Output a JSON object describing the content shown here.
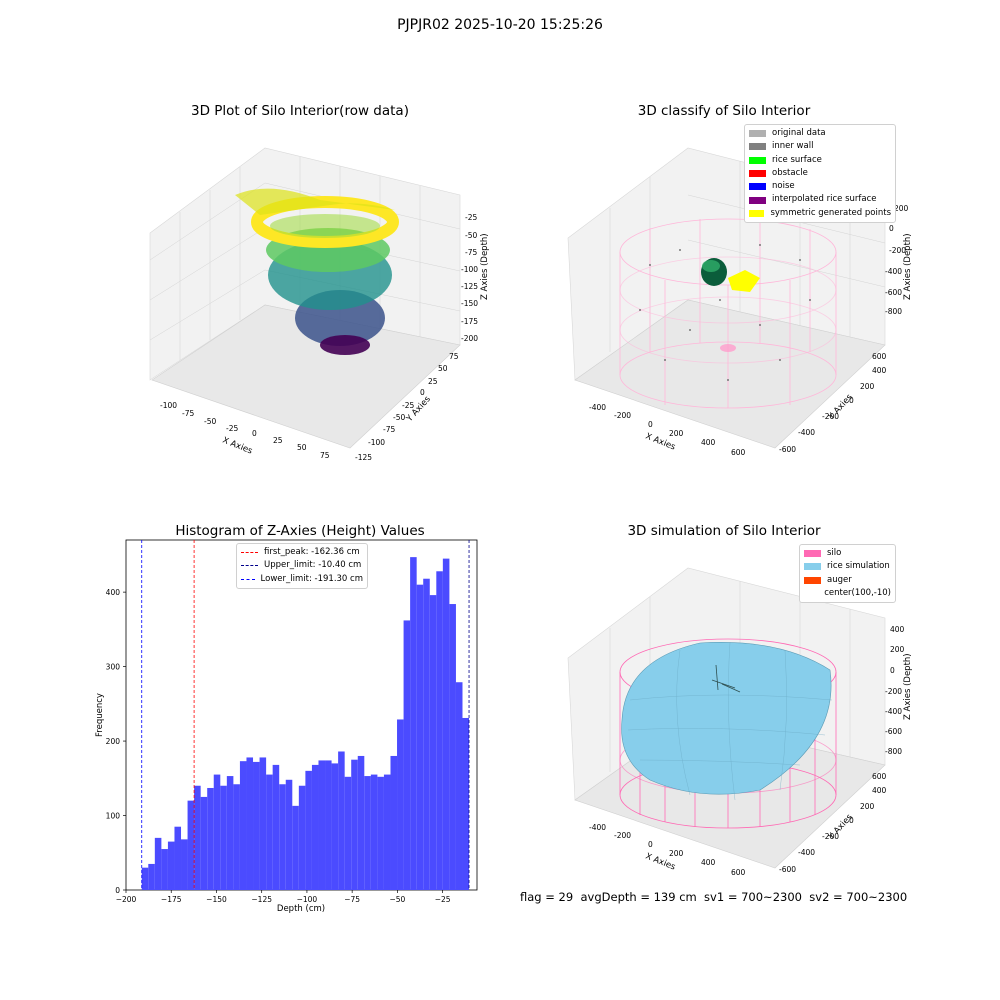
{
  "figure": {
    "suptitle": "PJPJR02 2025-10-20 15:25:26",
    "footer": "flag = 29  avgDepth = 139 cm  sv1 = 700~2300  sv2 = 700~2300"
  },
  "panels": {
    "raw": {
      "title": "3D Plot of Silo Interior(row data)",
      "xlabel": "X Axies",
      "ylabel": "Y Axies",
      "zlabel": "Z Axies (Depth)",
      "xticks": [
        "-100",
        "-75",
        "-50",
        "-25",
        "0",
        "25",
        "50",
        "75"
      ],
      "yticks": [
        "-125",
        "-100",
        "-75",
        "-50",
        "-25",
        "0",
        "25",
        "50",
        "75"
      ],
      "zticks": [
        "-25",
        "-50",
        "-75",
        "-100",
        "-125",
        "-150",
        "-175",
        "-200"
      ]
    },
    "classify": {
      "title": "3D classify of Silo Interior",
      "xlabel": "X Axies",
      "ylabel": "Y Axies",
      "zlabel": "Z Axies (Depth)",
      "xticks": [
        "-400",
        "-200",
        "0",
        "200",
        "400",
        "600"
      ],
      "yticks": [
        "-600",
        "-400",
        "-200",
        "0",
        "200",
        "400",
        "600"
      ],
      "zticks": [
        "200",
        "0",
        "-200",
        "-400",
        "-600",
        "-800"
      ],
      "legend": [
        {
          "label": "original data",
          "color": "#b0b0b0"
        },
        {
          "label": "inner wall",
          "color": "#808080"
        },
        {
          "label": "rice surface",
          "color": "#00ff00"
        },
        {
          "label": "obstacle",
          "color": "#ff0000"
        },
        {
          "label": "noise",
          "color": "#0000ff"
        },
        {
          "label": "interpolated rice surface",
          "color": "#800080"
        },
        {
          "label": "symmetric generated points",
          "color": "#ffff00"
        }
      ]
    },
    "simulation": {
      "title": "3D simulation of Silo Interior",
      "xlabel": "X Axies",
      "ylabel": "Y Axies",
      "zlabel": "Z Axies (Depth)",
      "xticks": [
        "-400",
        "-200",
        "0",
        "200",
        "400",
        "600"
      ],
      "yticks": [
        "-600",
        "-400",
        "-200",
        "0",
        "200",
        "400",
        "600"
      ],
      "zticks": [
        "400",
        "200",
        "0",
        "-200",
        "-400",
        "-600",
        "-800"
      ],
      "legend": [
        {
          "label": "silo",
          "color": "#ff69b4"
        },
        {
          "label": "rice simulation",
          "color": "#87ceeb"
        },
        {
          "label": "auger",
          "color": "#ff4500"
        },
        {
          "label": "center(100,-10)",
          "color": ""
        }
      ]
    }
  },
  "chart_data": [
    {
      "type": "bar",
      "title": "Histogram of Z-Axies (Height) Values",
      "xlabel": "Depth (cm)",
      "ylabel": "Frequency",
      "xlim": [
        -200,
        -6
      ],
      "ylim": [
        0,
        470
      ],
      "xticks": [
        -200,
        -175,
        -150,
        -125,
        -100,
        -75,
        -50,
        -25
      ],
      "yticks": [
        0,
        100,
        200,
        300,
        400
      ],
      "bar_color": "#4b4bff",
      "bins_start": -191.3,
      "bin_width": 3.618,
      "values": [
        30,
        35,
        70,
        55,
        65,
        85,
        68,
        120,
        140,
        125,
        137,
        155,
        140,
        153,
        142,
        173,
        178,
        172,
        178,
        155,
        168,
        142,
        148,
        113,
        140,
        160,
        168,
        174,
        174,
        170,
        186,
        152,
        175,
        180,
        153,
        155,
        152,
        155,
        180,
        229,
        362,
        447,
        410,
        418,
        396,
        428,
        445,
        384,
        279,
        231
      ],
      "vlines": [
        {
          "label": "first_peak: -162.36 cm",
          "x": -162.36,
          "color": "#ff0000"
        },
        {
          "label": "Upper_limit: -10.40 cm",
          "x": -10.4,
          "color": "#00008b"
        },
        {
          "label": "Lower_limit: -191.30 cm",
          "x": -191.3,
          "color": "#0000ff"
        }
      ],
      "legend_position": "top-center"
    }
  ]
}
